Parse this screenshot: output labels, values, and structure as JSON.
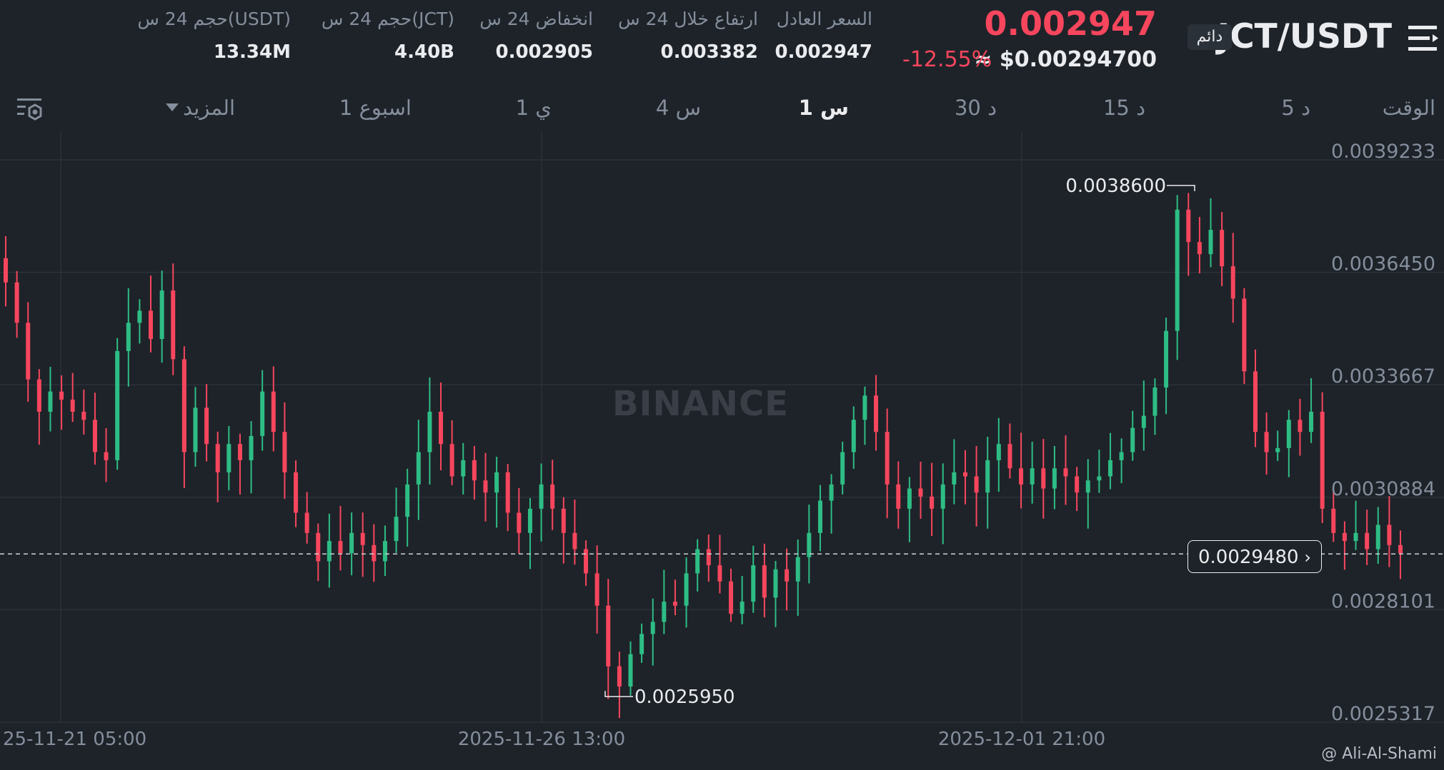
{
  "header": {
    "symbol": "JCT/USDT",
    "contract_badge": "دائم",
    "last_price": "0.002947",
    "usd_price": "≈ $0.00294700",
    "change_pct": "-12.55%",
    "stats": [
      {
        "label": "السعر العادل",
        "value": "0.002947"
      },
      {
        "label": "ارتفاع خلال 24 س",
        "value": "0.003382"
      },
      {
        "label": "انخفاض 24 س",
        "value": "0.002905"
      },
      {
        "label": "حجم 24 س(JCT)",
        "value": "4.40B"
      },
      {
        "label": "حجم 24 س(USDT)",
        "value": "13.34M"
      }
    ]
  },
  "timeframes": {
    "time_label": "الوقت",
    "items": [
      "5 د",
      "15 د",
      "30 د",
      "1 س",
      "4 س",
      "1 ي",
      "1 اسبوع"
    ],
    "active": "1 س",
    "more_label": "المزيد"
  },
  "chart_data": {
    "type": "candlestick",
    "title": "",
    "ylim": [
      0.0025317,
      0.0039233
    ],
    "y_ticks": [
      "0.0039233",
      "0.0036450",
      "0.0033667",
      "0.0030884",
      "0.0028101",
      "0.0025317"
    ],
    "x_ticks": [
      "25-11-21 05:00",
      "2025-11-26 13:00",
      "2025-12-01 21:00"
    ],
    "high_marker": "0.0038600",
    "low_marker": "0.0025950",
    "current_price_tag": "0.0029480",
    "up_color": "#2ebd85",
    "down_color": "#f6465d",
    "close_path": [
      0.00362,
      0.00352,
      0.00338,
      0.0033,
      0.00335,
      0.00333,
      0.0033,
      0.00328,
      0.0032,
      0.00318,
      0.00345,
      0.00352,
      0.00355,
      0.00348,
      0.0036,
      0.00343,
      0.0032,
      0.00331,
      0.00322,
      0.00315,
      0.00322,
      0.00318,
      0.00324,
      0.00335,
      0.00325,
      0.00315,
      0.00305,
      0.003,
      0.00293,
      0.00298,
      0.00295,
      0.003,
      0.00297,
      0.00293,
      0.00298,
      0.00304,
      0.00312,
      0.0032,
      0.0033,
      0.00322,
      0.00314,
      0.00318,
      0.00313,
      0.0031,
      0.00315,
      0.00305,
      0.003,
      0.00306,
      0.00312,
      0.00306,
      0.003,
      0.00296,
      0.0029,
      0.00282,
      0.00267,
      0.00262,
      0.0027,
      0.00275,
      0.00278,
      0.00283,
      0.00282,
      0.0029,
      0.00296,
      0.00292,
      0.00288,
      0.0028,
      0.00283,
      0.00292,
      0.00284,
      0.00291,
      0.00288,
      0.00294,
      0.003,
      0.00308,
      0.00312,
      0.0032,
      0.00328,
      0.00334,
      0.00325,
      0.00312,
      0.00306,
      0.00311,
      0.00309,
      0.00306,
      0.00312,
      0.00315,
      0.00314,
      0.0031,
      0.00318,
      0.00322,
      0.00316,
      0.00312,
      0.00316,
      0.00311,
      0.00316,
      0.00314,
      0.0031,
      0.00313,
      0.00314,
      0.00318,
      0.0032,
      0.00326,
      0.00329,
      0.00336,
      0.0035,
      0.0038,
      0.00372,
      0.00369,
      0.00375,
      0.00366,
      0.00358,
      0.0034,
      0.00325,
      0.0032,
      0.00321,
      0.00328,
      0.00325,
      0.0033,
      0.00306,
      0.003,
      0.00298,
      0.003,
      0.00296,
      0.00302,
      0.00297,
      0.00295
    ]
  },
  "watermark": "BINANCE",
  "credit": "@ Ali-Al-Shami"
}
